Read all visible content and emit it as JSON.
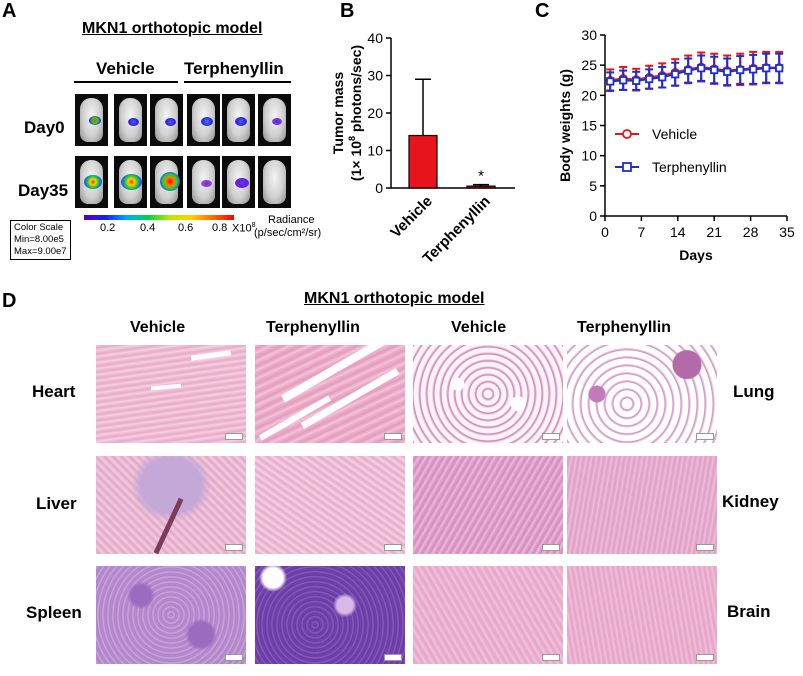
{
  "figure": {
    "panel_a": {
      "letter": "A",
      "title": "MKN1 orthotopic model",
      "groups": [
        "Vehicle",
        "Terphenyllin"
      ],
      "rows": [
        "Day0",
        "Day35"
      ],
      "color_scale": {
        "line1": "Color  Scale",
        "line2": "Min=8.00e5",
        "line3": "Max=9.00e7"
      },
      "colorbar_ticks": [
        "0.2",
        "0.4",
        "0.6",
        "0.8"
      ],
      "colorbar_multiplier": "X10",
      "colorbar_exponent": "8",
      "radiance_label_1": "Radiance",
      "radiance_label_2": "(p/sec/cm²/sr)"
    },
    "panel_b": {
      "letter": "B"
    },
    "panel_c": {
      "letter": "C"
    },
    "panel_d": {
      "letter": "D",
      "title": "MKN1 orthotopic model",
      "columns": [
        "Vehicle",
        "Terphenyllin",
        "Vehicle",
        "Terphenyllin"
      ],
      "left_rows": [
        "Heart",
        "Liver",
        "Spleen"
      ],
      "right_rows": [
        "Lung",
        "Kidney",
        "Brain"
      ]
    }
  },
  "chart_data": [
    {
      "type": "bar",
      "panel": "B",
      "categories": [
        "Vehicle",
        "Terphenyllin"
      ],
      "values": [
        14,
        0.5
      ],
      "errors": [
        15,
        0.4
      ],
      "ylabel_line1": "Tumor mass",
      "ylabel_line2": "(1× 10",
      "ylabel_exp": "8",
      "ylabel_line2_end": " photons/sec)",
      "ylim": [
        0,
        40
      ],
      "yticks": [
        "0",
        "10",
        "20",
        "30",
        "40"
      ],
      "annotation": "*",
      "colors": [
        "#e8141b",
        "#e8141b"
      ]
    },
    {
      "type": "line",
      "panel": "C",
      "xlabel": "Days",
      "ylabel": "Body weights (g)",
      "xlim": [
        0,
        35
      ],
      "ylim": [
        0,
        30
      ],
      "xticks": [
        "0",
        "7",
        "14",
        "21",
        "28",
        "35"
      ],
      "yticks": [
        "0",
        "5",
        "10",
        "15",
        "20",
        "25",
        "30"
      ],
      "legend_position": "center-right",
      "series": [
        {
          "name": "Vehicle",
          "color": "#e8141b",
          "marker": "circle",
          "x": [
            1,
            3.5,
            6,
            8.5,
            11,
            13.5,
            16,
            18.5,
            21,
            23.5,
            26,
            28.5,
            31,
            33.5
          ],
          "y": [
            22.5,
            22.8,
            22.6,
            23.0,
            23.3,
            23.8,
            24.3,
            24.7,
            24.4,
            24.1,
            24.3,
            24.5,
            24.6,
            24.6
          ],
          "err": [
            1.8,
            1.9,
            1.8,
            1.9,
            2.0,
            2.2,
            2.3,
            2.4,
            2.5,
            2.5,
            2.6,
            2.7,
            2.6,
            2.6
          ]
        },
        {
          "name": "Terphenyllin",
          "color": "#1a2fd1",
          "marker": "square",
          "x": [
            1,
            3.5,
            6,
            8.5,
            11,
            13.5,
            16,
            18.5,
            21,
            23.5,
            26,
            28.5,
            31,
            33.5
          ],
          "y": [
            22.3,
            22.5,
            22.4,
            22.7,
            23.0,
            23.5,
            24.1,
            24.5,
            24.2,
            23.9,
            24.2,
            24.3,
            24.5,
            24.5
          ],
          "err": [
            1.5,
            1.6,
            1.5,
            1.6,
            1.7,
            1.9,
            2.0,
            2.1,
            2.2,
            2.2,
            2.3,
            2.4,
            2.4,
            2.4
          ]
        }
      ]
    }
  ]
}
